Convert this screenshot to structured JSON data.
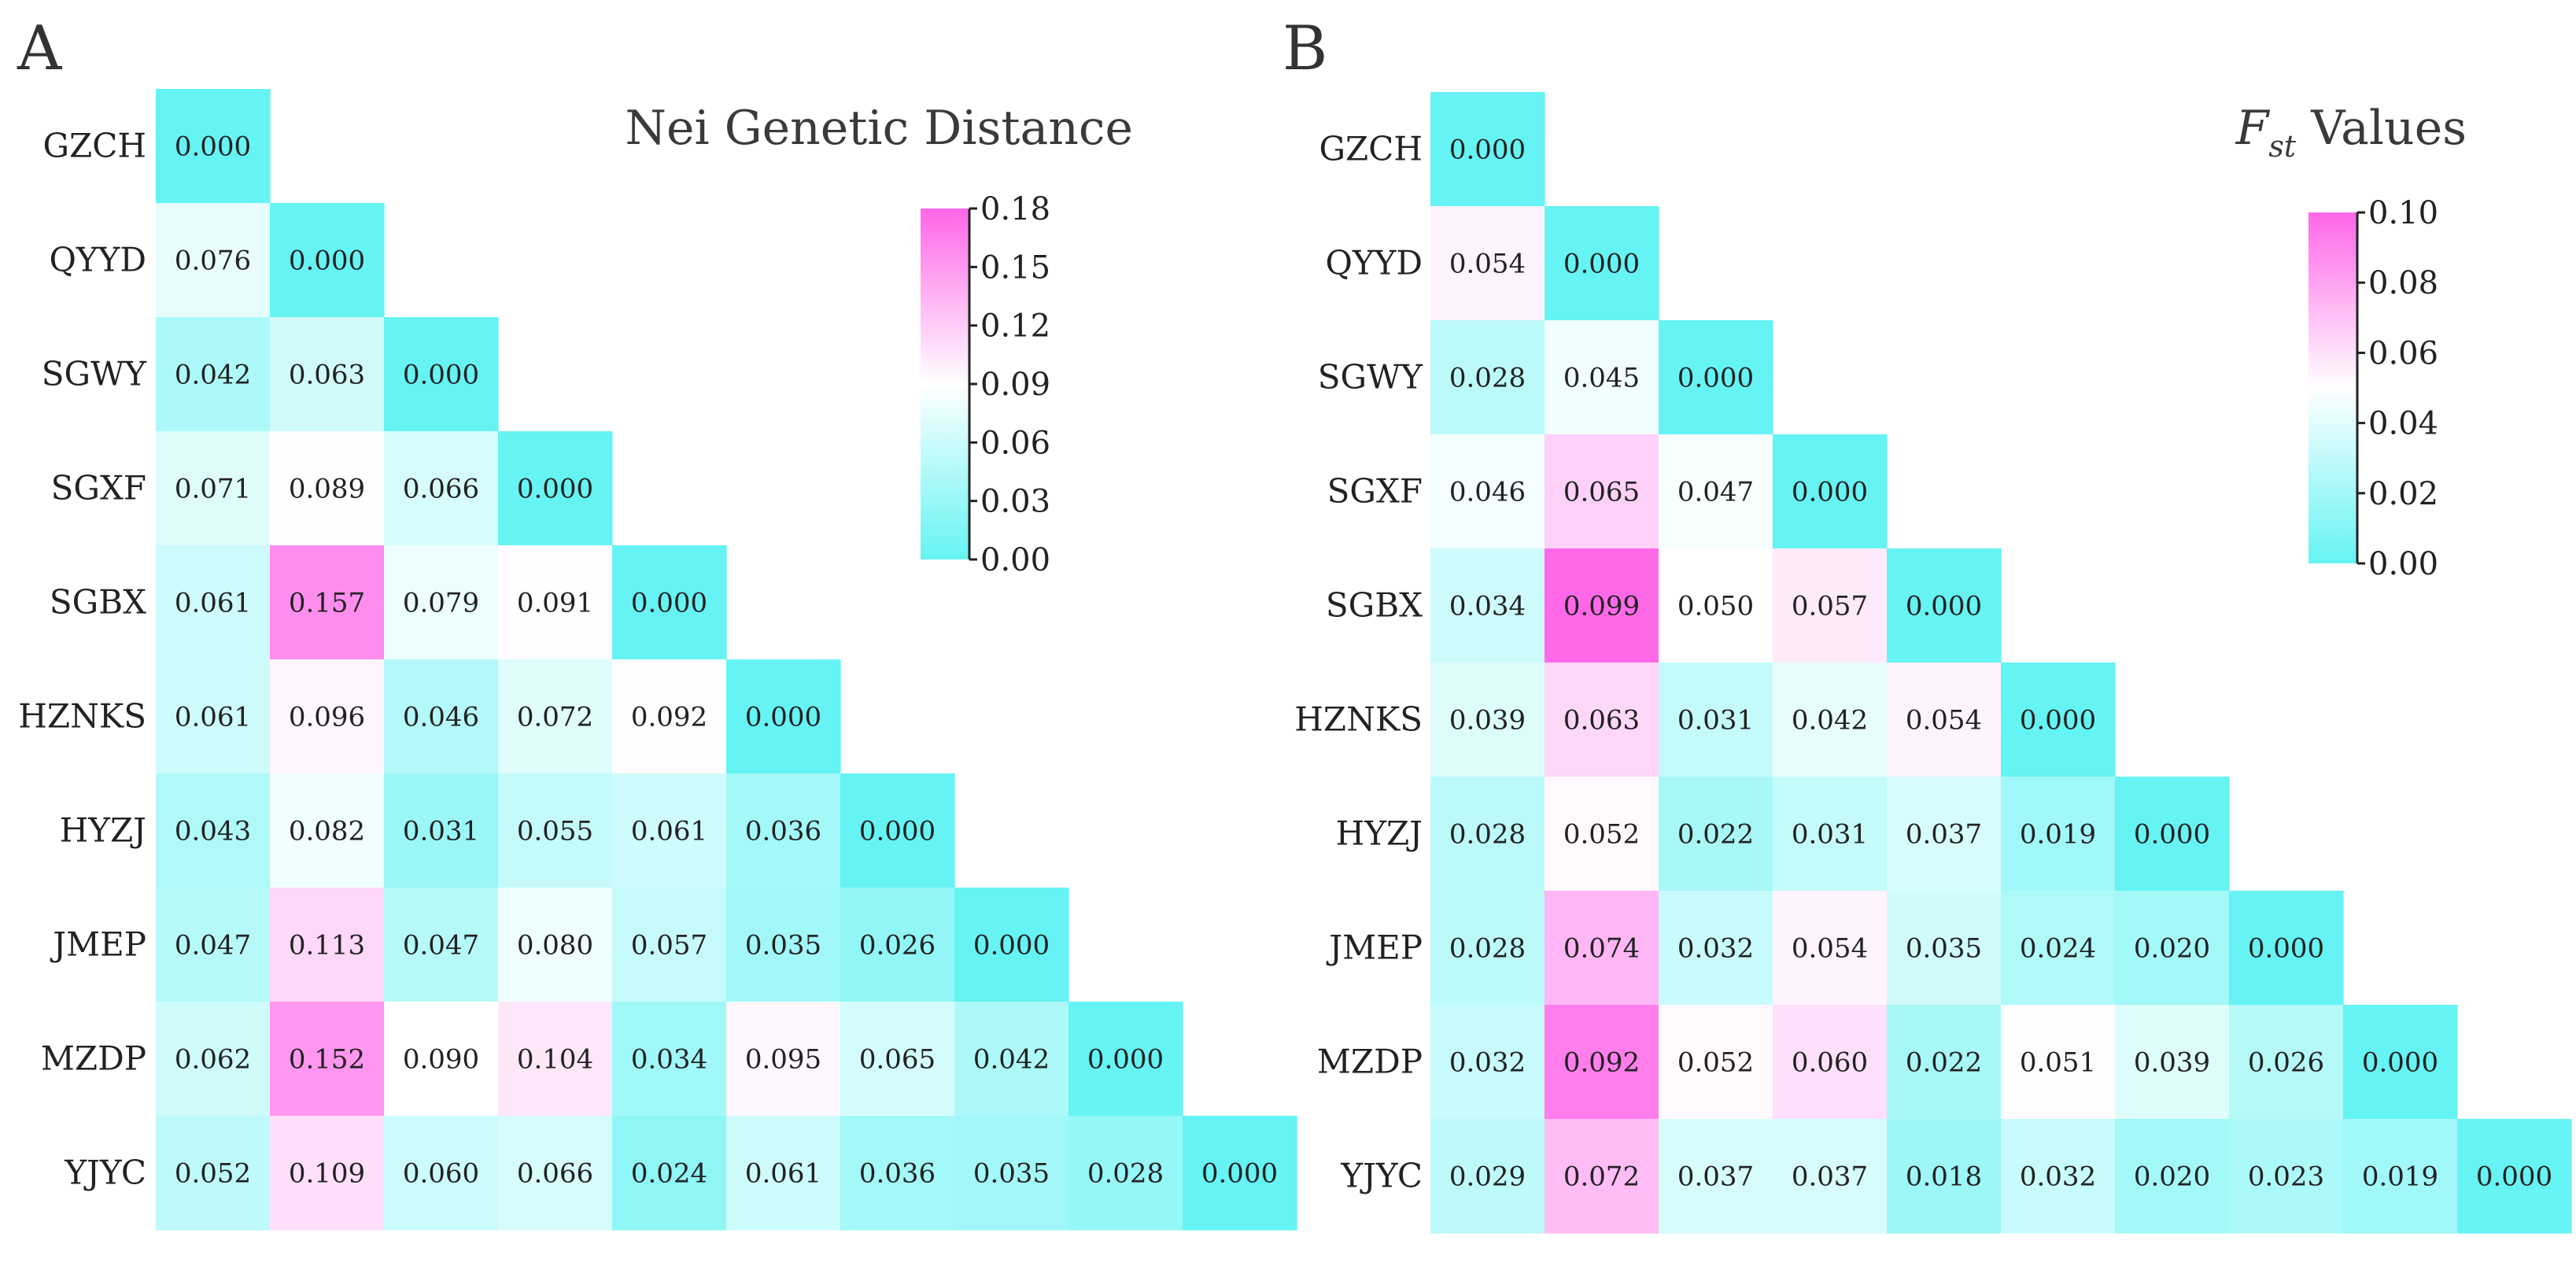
{
  "chart_data": [
    {
      "type": "heatmap",
      "panel_label": "A",
      "title": "Nei Genetic Distance",
      "title_subscript": "",
      "populations": [
        "GZCH",
        "QYYD",
        "SGWY",
        "SGXF",
        "SGBX",
        "HZNKS",
        "HYZJ",
        "JMEP",
        "MZDP",
        "YJYC"
      ],
      "values": [
        [
          "0.000"
        ],
        [
          "0.076",
          "0.000"
        ],
        [
          "0.042",
          "0.063",
          "0.000"
        ],
        [
          "0.071",
          "0.089",
          "0.066",
          "0.000"
        ],
        [
          "0.061",
          "0.157",
          "0.079",
          "0.091",
          "0.000"
        ],
        [
          "0.061",
          "0.096",
          "0.046",
          "0.072",
          "0.092",
          "0.000"
        ],
        [
          "0.043",
          "0.082",
          "0.031",
          "0.055",
          "0.061",
          "0.036",
          "0.000"
        ],
        [
          "0.047",
          "0.113",
          "0.047",
          "0.080",
          "0.057",
          "0.035",
          "0.026",
          "0.000"
        ],
        [
          "0.062",
          "0.152",
          "0.090",
          "0.104",
          "0.034",
          "0.095",
          "0.065",
          "0.042",
          "0.000"
        ],
        [
          "0.052",
          "0.109",
          "0.060",
          "0.066",
          "0.024",
          "0.061",
          "0.036",
          "0.035",
          "0.028",
          "0.000"
        ]
      ],
      "colorbar": {
        "range": [
          0,
          0.18
        ],
        "ticks": [
          "0.18",
          "0.15",
          "0.12",
          "0.09",
          "0.06",
          "0.03",
          "0.00"
        ]
      },
      "colors": {
        "low": "#66F3F3",
        "mid": "#FFFFFF",
        "high": "#FF66E8"
      }
    },
    {
      "type": "heatmap",
      "panel_label": "B",
      "title": "F",
      "title_subscript": "st",
      "title_suffix": " Values",
      "populations": [
        "GZCH",
        "QYYD",
        "SGWY",
        "SGXF",
        "SGBX",
        "HZNKS",
        "HYZJ",
        "JMEP",
        "MZDP",
        "YJYC"
      ],
      "values": [
        [
          "0.000"
        ],
        [
          "0.054",
          "0.000"
        ],
        [
          "0.028",
          "0.045",
          "0.000"
        ],
        [
          "0.046",
          "0.065",
          "0.047",
          "0.000"
        ],
        [
          "0.034",
          "0.099",
          "0.050",
          "0.057",
          "0.000"
        ],
        [
          "0.039",
          "0.063",
          "0.031",
          "0.042",
          "0.054",
          "0.000"
        ],
        [
          "0.028",
          "0.052",
          "0.022",
          "0.031",
          "0.037",
          "0.019",
          "0.000"
        ],
        [
          "0.028",
          "0.074",
          "0.032",
          "0.054",
          "0.035",
          "0.024",
          "0.020",
          "0.000"
        ],
        [
          "0.032",
          "0.092",
          "0.052",
          "0.060",
          "0.022",
          "0.051",
          "0.039",
          "0.026",
          "0.000"
        ],
        [
          "0.029",
          "0.072",
          "0.037",
          "0.037",
          "0.018",
          "0.032",
          "0.020",
          "0.023",
          "0.019",
          "0.000"
        ]
      ],
      "colorbar": {
        "range": [
          0,
          0.1
        ],
        "ticks": [
          "0.10",
          "0.08",
          "0.06",
          "0.04",
          "0.02",
          "0.00"
        ]
      },
      "colors": {
        "low": "#66F3F3",
        "mid": "#FFFFFF",
        "high": "#FF66E8"
      }
    }
  ]
}
